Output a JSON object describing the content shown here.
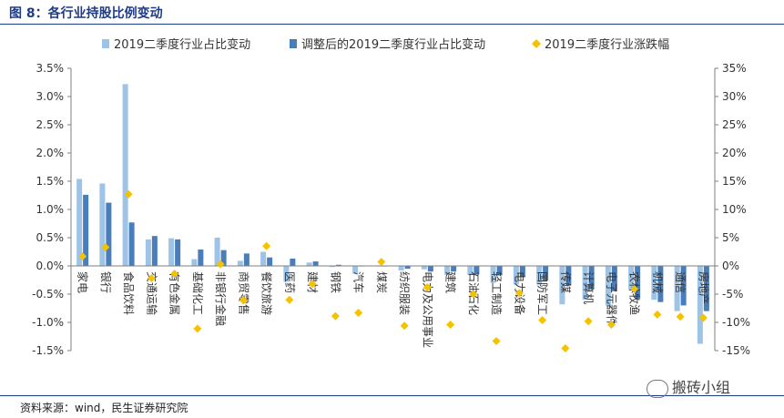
{
  "title": "图 8：各行业持股比例变动",
  "source": "资料来源：wind，民生证券研究院",
  "watermark": "搬砖小组",
  "chart_data": {
    "type": "bar",
    "legend_position": "top",
    "grid": false,
    "categories": [
      "家电",
      "银行",
      "食品饮料",
      "交通运输",
      "有色金属",
      "基础化工",
      "非银行金融",
      "商贸零售",
      "餐饮旅游",
      "医药",
      "建材",
      "钢铁",
      "汽车",
      "煤炭",
      "纺织服装",
      "电力及公用事业",
      "建筑",
      "石油石化",
      "轻工制造",
      "电力设备",
      "国防军工",
      "传媒",
      "计算机",
      "电子元器件",
      "农林牧渔",
      "机械",
      "通信",
      "房地产"
    ],
    "series": [
      {
        "name": "2019二季度行业占比变动",
        "axis": "left",
        "color": "#9dc3e6",
        "values": [
          1.54,
          1.46,
          3.22,
          0.47,
          0.49,
          0.12,
          0.5,
          0.09,
          0.25,
          -0.28,
          0.06,
          -0.02,
          -0.14,
          -0.01,
          -0.08,
          -0.06,
          -0.16,
          -0.16,
          -0.3,
          -0.33,
          -0.33,
          -0.68,
          -0.6,
          -0.7,
          -0.43,
          -0.6,
          -0.8,
          -1.38
        ]
      },
      {
        "name": "调整后的2019二季度行业占比变动",
        "axis": "left",
        "color": "#4a7ebb",
        "values": [
          1.26,
          1.12,
          0.77,
          0.53,
          0.47,
          0.29,
          0.28,
          0.22,
          0.15,
          0.13,
          0.08,
          0.02,
          0.0,
          0.0,
          -0.05,
          -0.1,
          -0.1,
          -0.15,
          -0.17,
          -0.19,
          -0.26,
          -0.35,
          -0.41,
          -0.45,
          -0.58,
          -0.64,
          -0.7,
          -0.8
        ]
      },
      {
        "name": "2019二季度行业涨跌幅",
        "axis": "right",
        "color": "#f5c200",
        "values": [
          1.7,
          3.3,
          12.7,
          -2.2,
          -1.4,
          -11.1,
          0.3,
          -6.1,
          3.5,
          -6.0,
          -3.2,
          -8.9,
          -8.3,
          0.7,
          -10.6,
          -3.8,
          -10.4,
          -5.0,
          -13.3,
          -4.8,
          -9.6,
          -14.6,
          -9.8,
          -10.4,
          -4.1,
          -8.6,
          -9.0,
          -9.2
        ]
      }
    ],
    "y_left": {
      "min": -1.5,
      "max": 3.5,
      "step": 0.5,
      "tick_labels": [
        "-1.5%",
        "-1.0%",
        "-0.5%",
        "0.0%",
        "0.5%",
        "1.0%",
        "1.5%",
        "2.0%",
        "2.5%",
        "3.0%",
        "3.5%"
      ]
    },
    "y_right": {
      "min": -15,
      "max": 35,
      "step": 5,
      "tick_labels": [
        "-15%",
        "-10%",
        "-5%",
        "0%",
        "5%",
        "10%",
        "15%",
        "20%",
        "25%",
        "30%",
        "35%"
      ]
    }
  }
}
